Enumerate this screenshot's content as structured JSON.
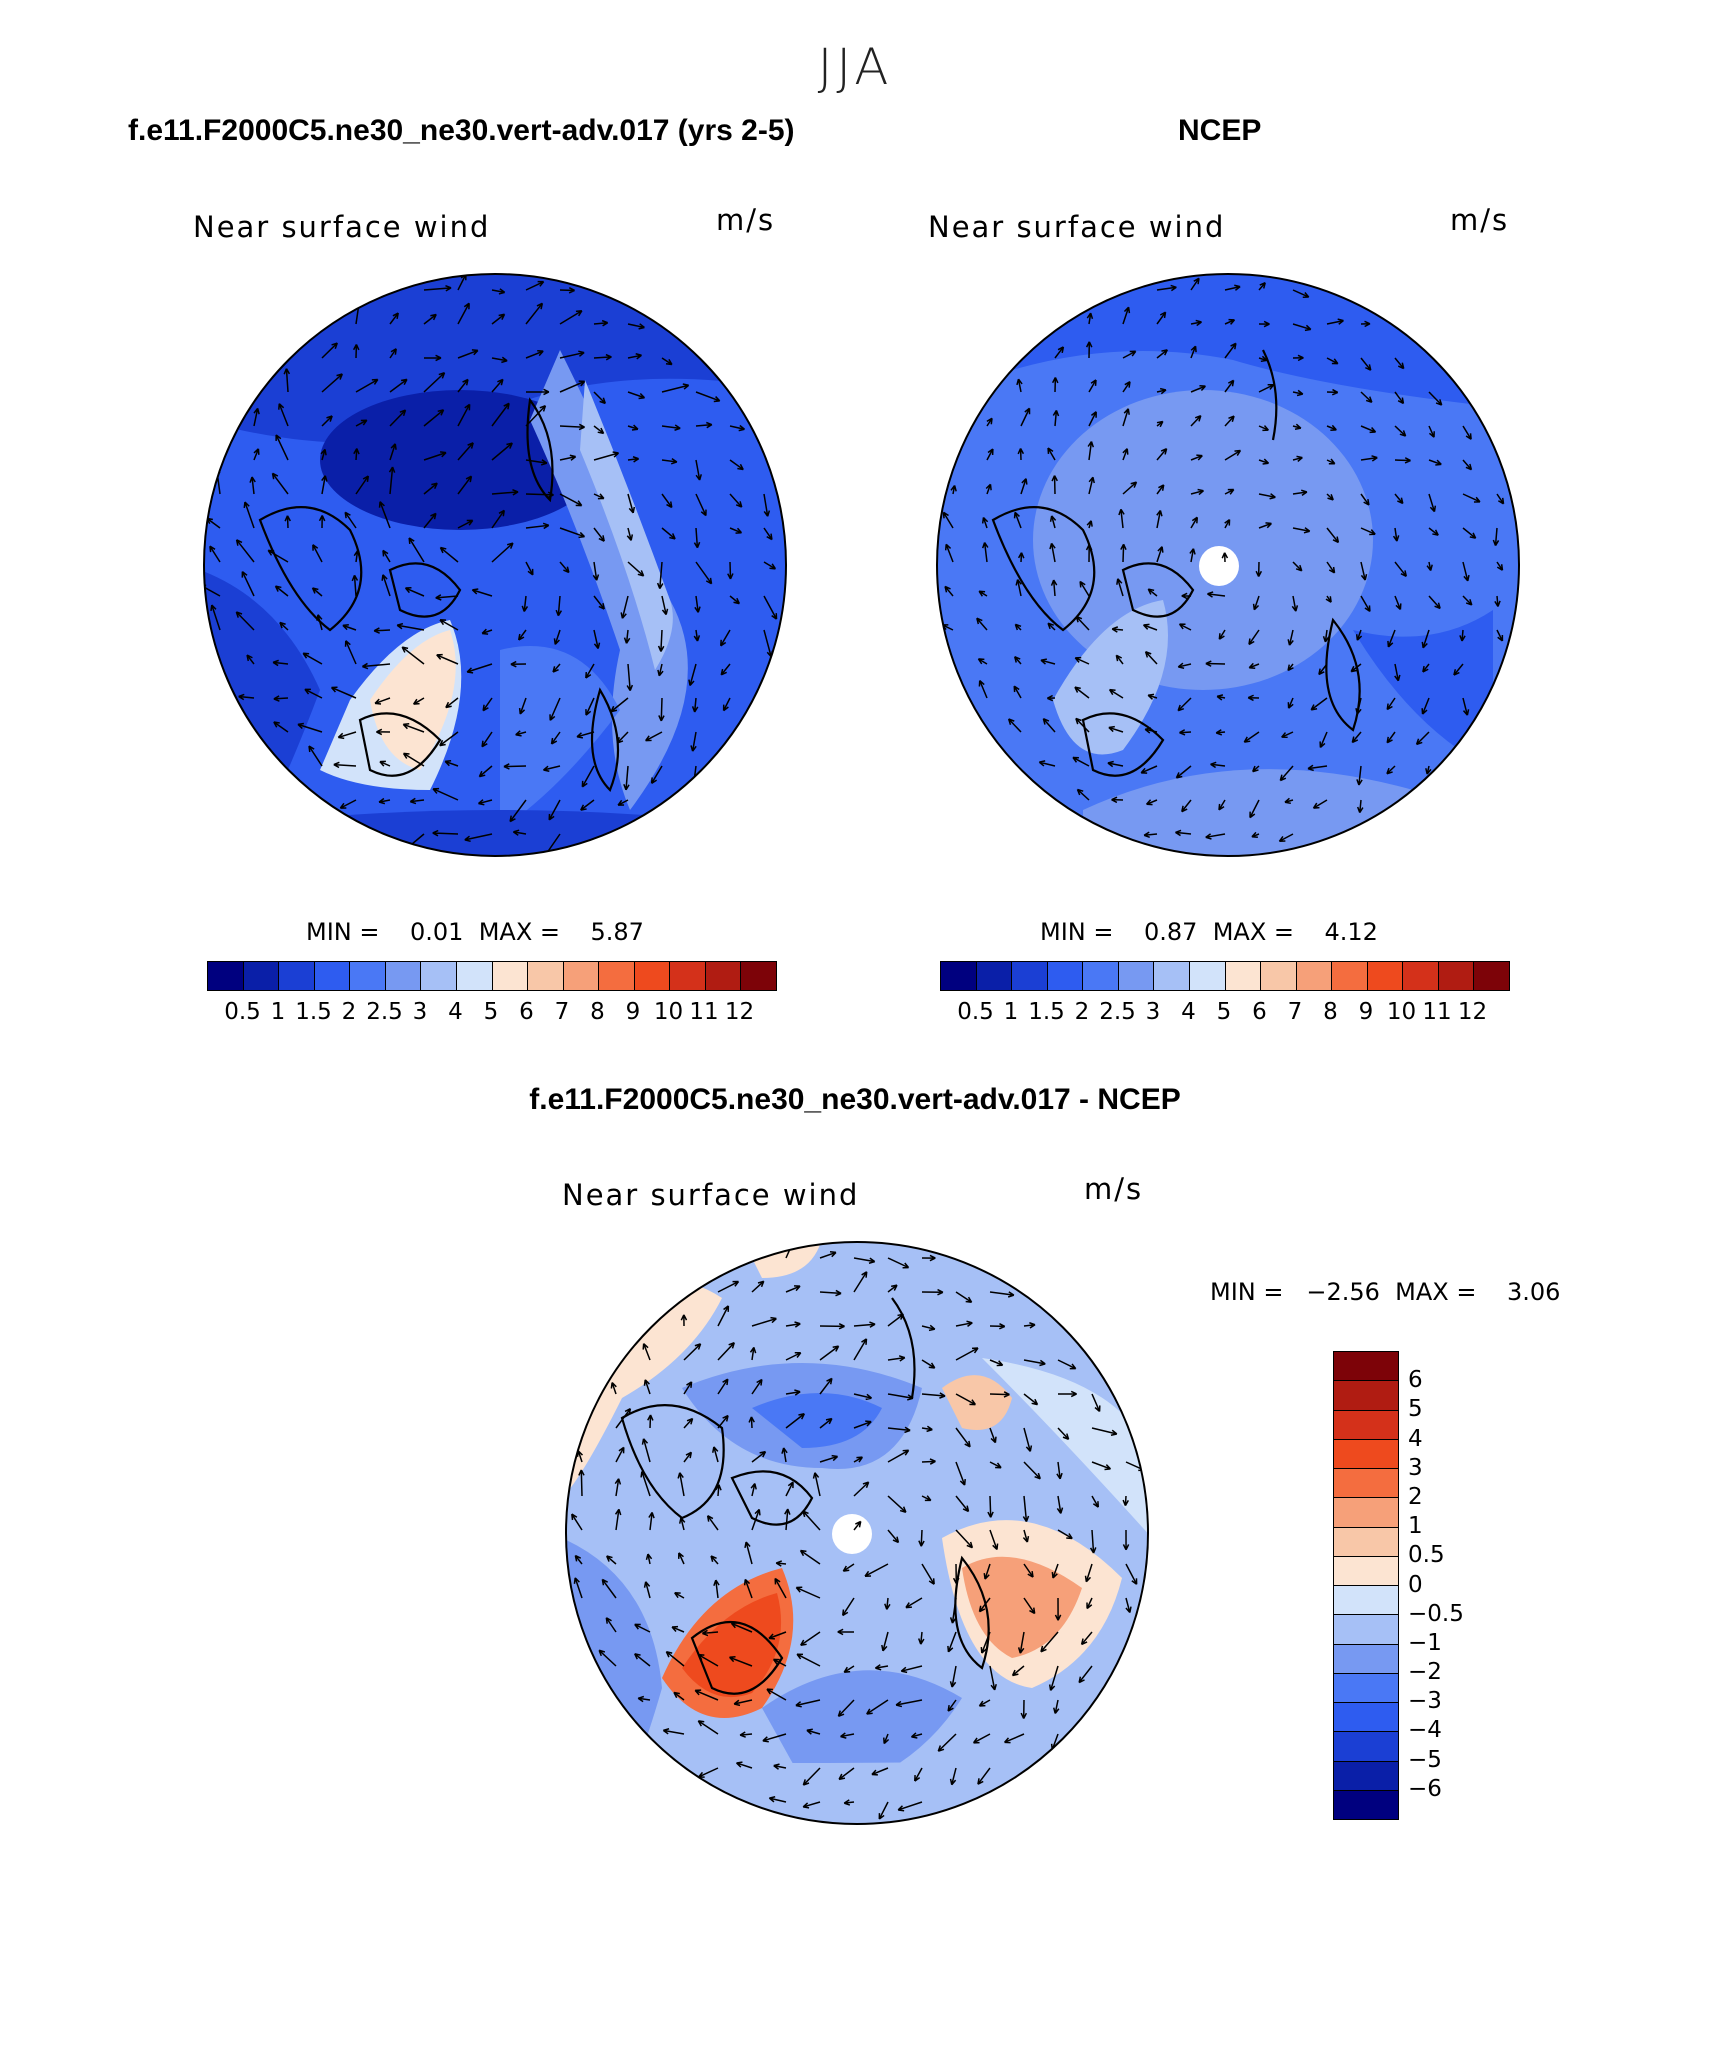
{
  "season": "JJA",
  "panels": [
    {
      "title": "f.e11.F2000C5.ne30_ne30.vert-adv.017 (yrs 2-5)",
      "subtitle_left": "Near surface wind",
      "subtitle_right": "m/s",
      "min_max": "MIN =    0.01  MAX =    5.87",
      "colorbar_ticks": [
        "0.5",
        "1",
        "1.5",
        "2",
        "2.5",
        "3",
        "4",
        "5",
        "6",
        "7",
        "8",
        "9",
        "10",
        "11",
        "12"
      ]
    },
    {
      "title": "NCEP",
      "subtitle_left": "Near surface wind",
      "subtitle_right": "m/s",
      "min_max": "MIN =    0.87  MAX =    4.12",
      "colorbar_ticks": [
        "0.5",
        "1",
        "1.5",
        "2",
        "2.5",
        "3",
        "4",
        "5",
        "6",
        "7",
        "8",
        "9",
        "10",
        "11",
        "12"
      ]
    },
    {
      "title": "f.e11.F2000C5.ne30_ne30.vert-adv.017 - NCEP",
      "subtitle_left": "Near surface wind",
      "subtitle_right": "m/s",
      "min_max": "MIN =   −2.56  MAX =    3.06",
      "colorbar_ticks": [
        "6",
        "5",
        "4",
        "3",
        "2",
        "1",
        "0.5",
        "0",
        "−0.5",
        "−1",
        "−2",
        "−3",
        "−4",
        "−5",
        "−6"
      ]
    }
  ],
  "colors": {
    "abs_scale": [
      "#00007f",
      "#0a1fa8",
      "#1b3fd4",
      "#2e5cf0",
      "#4a78f5",
      "#7799f2",
      "#a6c0f6",
      "#d2e3fa",
      "#fce4d2",
      "#f8c7a8",
      "#f6a079",
      "#f46d3f",
      "#ee4a1e",
      "#d4311a",
      "#b01c12",
      "#7d0308"
    ],
    "diff_scale": [
      "#7d0308",
      "#b01c12",
      "#d4311a",
      "#ee4a1e",
      "#f46d3f",
      "#f6a079",
      "#f8c7a8",
      "#fce4d2",
      "#d2e3fa",
      "#a6c0f6",
      "#7799f2",
      "#4a78f5",
      "#2e5cf0",
      "#1b3fd4",
      "#0a1fa8",
      "#00007f"
    ]
  }
}
